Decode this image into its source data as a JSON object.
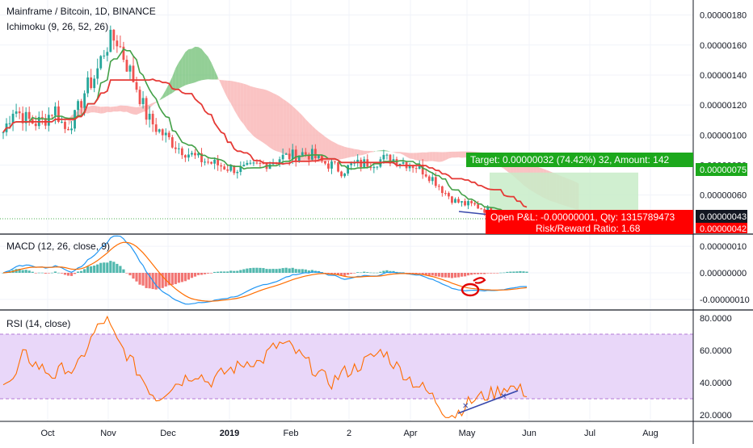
{
  "header": {
    "symbol_line": "Mainframe / Bitcoin, 1D, BINANCE",
    "indicator_line": "Ichimoku (9, 26, 52, 26)"
  },
  "panels": {
    "macd_label": "MACD (12, 26, close, 9)",
    "rsi_label": "RSI (14, close)"
  },
  "position_tool": {
    "target_text": "Target: 0.00000032 (74.42%) 32, Amount: 142",
    "pnl_text": "Open P&L: -0.00000001, Qty: 1315789473",
    "rr_text": "Risk/Reward Ratio: 1.68",
    "target_price_tag": "0.00000075",
    "current_price_tag": "0.00000043",
    "stop_price_tag": "0.00000042",
    "colors": {
      "profit": "#1ca81c",
      "loss": "#ff0000",
      "profit_zone": "#c8ecc8",
      "loss_zone": "#f6c9c9"
    }
  },
  "colors": {
    "candle_up": "#26a69a",
    "candle_down": "#ef5350",
    "tenkan": "#e53935",
    "kijun": "#43a047",
    "cloud_bear": "#f8a9a9",
    "cloud_bull": "#6fbf73",
    "macd_line": "#2196f3",
    "signal_line": "#ff6d00",
    "rsi_line": "#ff6d00",
    "rsi_band": "#e9d7f9"
  },
  "chart_data": [
    {
      "type": "candlestick",
      "title": "Mainframe / Bitcoin, 1D, BINANCE",
      "y_ticks": [
        "0.00000180",
        "0.00000160",
        "0.00000140",
        "0.00000120",
        "0.00000100",
        "0.00000080",
        "0.00000060"
      ],
      "ylim": [
        3.4e-07,
        1.9e-06
      ],
      "x_ticks": [
        "Oct",
        "Nov",
        "Dec",
        "2019",
        "Feb",
        "2",
        "Apr",
        "May",
        "Jun",
        "Jul",
        "Aug"
      ],
      "price_path": [
        1.02e-06,
        1.18e-06,
        1.12e-06,
        1.08e-06,
        1.1e-06,
        1.18e-06,
        1.04e-06,
        1.12e-06,
        1.3e-06,
        1.4e-06,
        1.6e-06,
        1.65e-06,
        1.48e-06,
        1.32e-06,
        1.12e-06,
        1.04e-06,
        9.8e-07,
        9.2e-07,
        8.8e-07,
        8.4e-07,
        8.2e-07,
        8e-07,
        7.8e-07,
        7.7e-07,
        7.8e-07,
        8e-07,
        8.2e-07,
        8.5e-07,
        8.6e-07,
        8.8e-07,
        8.7e-07,
        8.2e-07,
        8e-07,
        7.6e-07,
        8e-07,
        8.1e-07,
        8.2e-07,
        8.4e-07,
        8.4e-07,
        8.2e-07,
        8e-07,
        7.6e-07,
        7e-07,
        6.2e-07,
        5.6e-07,
        5.4e-07,
        5.3e-07,
        5e-07,
        4.9e-07,
        4.8e-07,
        4.6e-07,
        4.3e-07
      ],
      "series": [
        {
          "name": "Ichimoku (9, 26, 52, 26)",
          "role": "indicator"
        }
      ]
    },
    {
      "type": "line",
      "title": "MACD (12, 26, close, 9)",
      "y_ticks": [
        "0.00000010",
        "0.00000000",
        "-0.00000010"
      ],
      "ylim": [
        -1.4e-07,
        1.4e-07
      ]
    },
    {
      "type": "line",
      "title": "RSI (14, close)",
      "y_ticks": [
        "80.0000",
        "60.0000",
        "40.0000",
        "20.0000"
      ],
      "ylim": [
        16,
        84
      ],
      "bands": [
        30,
        70
      ],
      "values": [
        42,
        40,
        58,
        52,
        48,
        44,
        50,
        46,
        60,
        72,
        80,
        66,
        58,
        48,
        38,
        30,
        36,
        40,
        44,
        46,
        40,
        44,
        48,
        50,
        54,
        52,
        60,
        64,
        62,
        56,
        50,
        44,
        40,
        46,
        48,
        52,
        56,
        60,
        52,
        46,
        40,
        36,
        30,
        22,
        20,
        26,
        30,
        32,
        34,
        38,
        36,
        34
      ]
    }
  ]
}
